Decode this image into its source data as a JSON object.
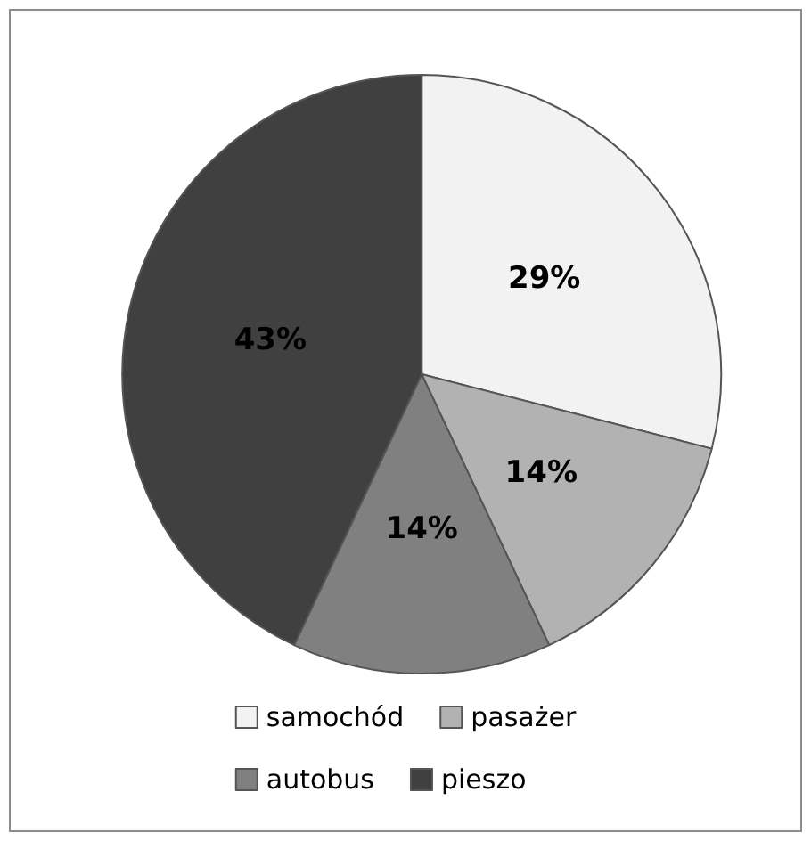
{
  "chart_data": {
    "type": "pie",
    "categories": [
      "samochód",
      "pasażer",
      "autobus",
      "pieszo"
    ],
    "values": [
      29,
      14,
      14,
      43
    ],
    "colors": [
      "#f2f2f2",
      "#b2b2b2",
      "#808080",
      "#404040"
    ],
    "value_labels": [
      "29%",
      "14%",
      "14%",
      "43%"
    ],
    "legend": "bottom"
  }
}
